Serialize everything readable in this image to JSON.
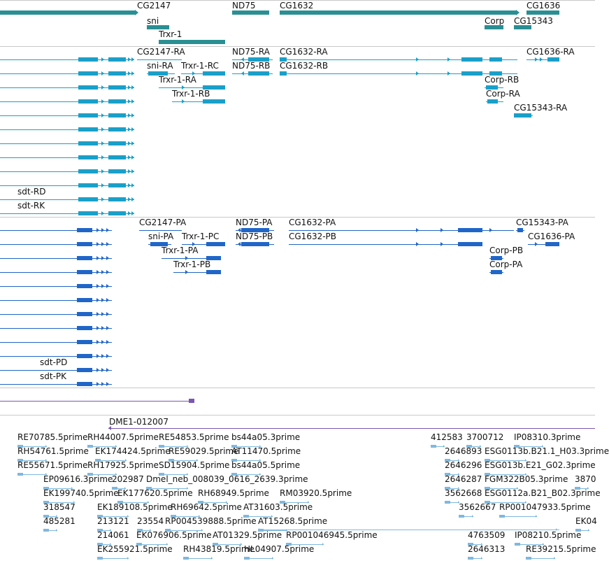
{
  "colors": {
    "gene": "#2a8f93",
    "transcript_a": "#1aa0c8",
    "transcript_b": "#2066c8",
    "purple": "#7b57b0",
    "est": "#7fb8dd",
    "divider": "#c8c8c8"
  },
  "tracks": {
    "genes": {
      "labels": [
        "CG2147",
        "sni",
        "Trxr-1",
        "ND75",
        "CG1632",
        "Corp",
        "CG15343",
        "CG1636"
      ]
    },
    "transcripts_a": {
      "labels": [
        "CG2147-RA",
        "ND75-RA",
        "CG1632-RA",
        "CG1636-RA",
        "sni-RA",
        "Trxr-1-RC",
        "ND75-RB",
        "CG1632-RB",
        "Trxr-1-RA",
        "Corp-RB",
        "Trxr-1-RB",
        "Corp-RA",
        "CG15343-RA",
        "sdt-RD",
        "sdt-RK"
      ]
    },
    "transcripts_b": {
      "labels": [
        "CG2147-PA",
        "ND75-PA",
        "CG1632-PA",
        "CG15343-PA",
        "sni-PA",
        "Trxr-1-PC",
        "ND75-PB",
        "CG1632-PB",
        "CG1636-PA",
        "Trxr-1-PA",
        "Corp-PB",
        "Trxr-1-PB",
        "Corp-PA",
        "sdt-PD",
        "sdt-PK"
      ]
    },
    "alignment": {
      "labels": [
        "DME1-012007"
      ]
    },
    "ests": {
      "labels": [
        "RE70785.5prime",
        "RH44007.5prime",
        "RE54853.5prime",
        "bs44a05.3prime",
        "412583",
        "3700712",
        "IP08310.3prime",
        "RH54761.5prime",
        "EK174424.5prime",
        "RE59029.5prime",
        "AT11470.5prime",
        "2646893",
        "ESG0113b.B21.1_H03.3prime",
        "RE55671.5prime",
        "RH17925.5prime",
        "SD15904.5prime",
        "bs44a05.5prime",
        "2646296",
        "ESG013b.E21_G02.3prime",
        "EP09616.3prime",
        "202987",
        "Dmel_neb_008039_0616_2639.3prime",
        "2646287",
        "FGM322B05.3prime",
        "3870",
        "EK199740.5prime",
        "EK177620.5prime",
        "RH68949.5prime",
        "RM03920.5prime",
        "3562668",
        "ESG0112a.B21_B02.3prime",
        "318547",
        "EK189108.5prime",
        "RH69642.5prime",
        "AT31603.5prime",
        "3562667",
        "RP001047933.5prime",
        "485281",
        "213121",
        "23554",
        "RP004539888.5prime",
        "AT15268.5prime",
        "EK04",
        "214061",
        "EK076906.5prime",
        "AT01329.5prime",
        "RP001046945.5prime",
        "4763509",
        "IP08210.5prime",
        "EK255921.5prime",
        "RH43819.5prime",
        "HL04907.5prime",
        "2646313",
        "RE39215.5prime"
      ]
    }
  }
}
